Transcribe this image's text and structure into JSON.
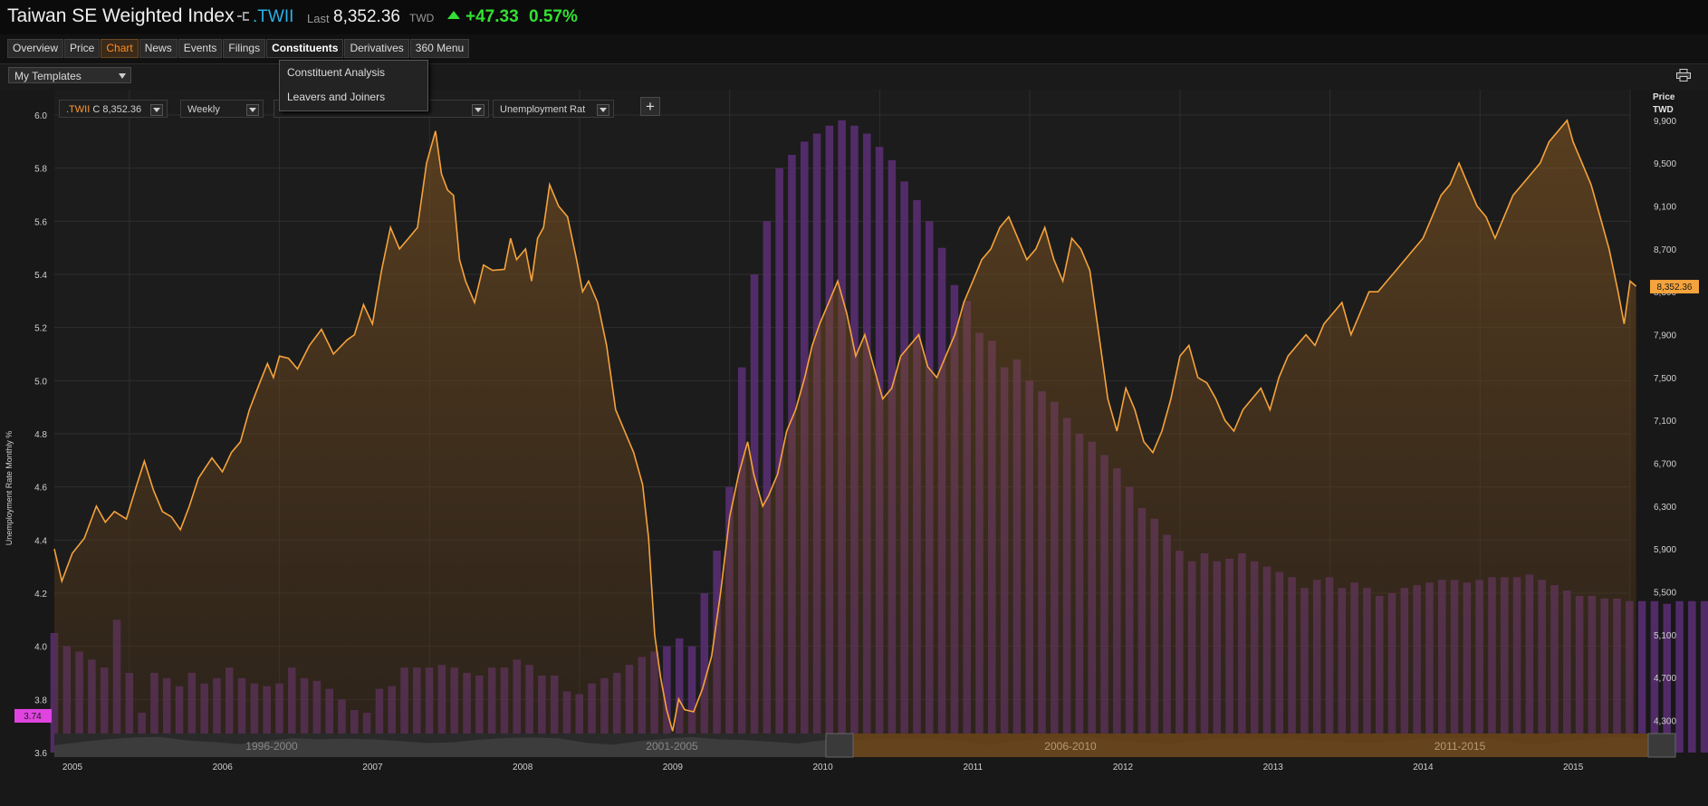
{
  "header": {
    "title": "Taiwan SE Weighted Index",
    "ric": ".TWII",
    "last_label": "Last",
    "last_value": "8,352.36",
    "currency": "TWD",
    "change": "+47.33",
    "change_pct": "0.57%",
    "colors": {
      "up": "#33e033",
      "ric": "#2ab0e8"
    }
  },
  "tabs": [
    {
      "label": "Overview"
    },
    {
      "label": "Price"
    },
    {
      "label": "Chart",
      "state": "active"
    },
    {
      "label": "News"
    },
    {
      "label": "Events"
    },
    {
      "label": "Filings"
    },
    {
      "label": "Constituents",
      "state": "open"
    },
    {
      "label": "Derivatives"
    },
    {
      "label": "360 Menu"
    }
  ],
  "constituents_menu": [
    "Constituent Analysis",
    "Leavers and Joiners"
  ],
  "toolbar": {
    "templates_label": "My Templates",
    "print_icon": "print-icon"
  },
  "controls": {
    "instrument_ric": ".TWII",
    "instrument_value": "C 8,352.36",
    "interval": "Weekly",
    "indicator": "Unemployment Rat",
    "add_label": "+"
  },
  "chart_data": {
    "type": "bar+area-line",
    "left_axis": {
      "label": "Unemployment Rate Monthly %",
      "ticks": [
        "6.0",
        "5.8",
        "5.6",
        "5.4",
        "5.2",
        "5.0",
        "4.8",
        "4.6",
        "4.4",
        "4.2",
        "4.0",
        "3.8",
        "3.6"
      ],
      "range": [
        3.6,
        6.0
      ]
    },
    "right_axis": {
      "label": "Price",
      "unit": "TWD",
      "ticks": [
        "9,900",
        "9,500",
        "9,100",
        "8,700",
        "8,300",
        "7,900",
        "7,500",
        "7,100",
        "6,700",
        "6,300",
        "5,900",
        "5,500",
        "5,100",
        "4,700",
        "4,300"
      ],
      "range": [
        4000,
        9950
      ]
    },
    "x_axis": {
      "labels": [
        "2005",
        "2006",
        "2007",
        "2008",
        "2009",
        "2010",
        "2011",
        "2012",
        "2013",
        "2014",
        "2015"
      ],
      "range": [
        2005.0,
        2015.5
      ]
    },
    "last_price_marker": "8,352.36",
    "last_rate_marker": "3.74",
    "price_series": {
      "name": ".TWII",
      "color": "#f5a33c",
      "points": [
        [
          2005.0,
          5900
        ],
        [
          2005.05,
          5600
        ],
        [
          2005.12,
          5860
        ],
        [
          2005.2,
          6000
        ],
        [
          2005.28,
          6300
        ],
        [
          2005.34,
          6150
        ],
        [
          2005.4,
          6250
        ],
        [
          2005.48,
          6180
        ],
        [
          2005.55,
          6500
        ],
        [
          2005.6,
          6720
        ],
        [
          2005.66,
          6450
        ],
        [
          2005.72,
          6250
        ],
        [
          2005.78,
          6200
        ],
        [
          2005.84,
          6080
        ],
        [
          2005.9,
          6300
        ],
        [
          2005.96,
          6560
        ],
        [
          2006.05,
          6750
        ],
        [
          2006.12,
          6620
        ],
        [
          2006.18,
          6800
        ],
        [
          2006.24,
          6900
        ],
        [
          2006.3,
          7200
        ],
        [
          2006.36,
          7420
        ],
        [
          2006.42,
          7630
        ],
        [
          2006.46,
          7500
        ],
        [
          2006.5,
          7700
        ],
        [
          2006.56,
          7680
        ],
        [
          2006.62,
          7580
        ],
        [
          2006.7,
          7800
        ],
        [
          2006.78,
          7950
        ],
        [
          2006.86,
          7720
        ],
        [
          2006.95,
          7850
        ],
        [
          2007.0,
          7900
        ],
        [
          2007.06,
          8180
        ],
        [
          2007.12,
          8000
        ],
        [
          2007.18,
          8500
        ],
        [
          2007.24,
          8900
        ],
        [
          2007.3,
          8700
        ],
        [
          2007.36,
          8800
        ],
        [
          2007.42,
          8900
        ],
        [
          2007.48,
          9500
        ],
        [
          2007.54,
          9800
        ],
        [
          2007.58,
          9400
        ],
        [
          2007.62,
          9250
        ],
        [
          2007.66,
          9200
        ],
        [
          2007.7,
          8600
        ],
        [
          2007.74,
          8400
        ],
        [
          2007.8,
          8200
        ],
        [
          2007.86,
          8550
        ],
        [
          2007.92,
          8500
        ],
        [
          2008.0,
          8510
        ],
        [
          2008.04,
          8800
        ],
        [
          2008.08,
          8600
        ],
        [
          2008.14,
          8700
        ],
        [
          2008.18,
          8400
        ],
        [
          2008.22,
          8800
        ],
        [
          2008.26,
          8900
        ],
        [
          2008.3,
          9300
        ],
        [
          2008.36,
          9100
        ],
        [
          2008.42,
          9000
        ],
        [
          2008.48,
          8600
        ],
        [
          2008.52,
          8300
        ],
        [
          2008.56,
          8400
        ],
        [
          2008.62,
          8200
        ],
        [
          2008.68,
          7800
        ],
        [
          2008.74,
          7200
        ],
        [
          2008.8,
          7000
        ],
        [
          2008.86,
          6800
        ],
        [
          2008.92,
          6500
        ],
        [
          2008.96,
          6000
        ],
        [
          2009.0,
          5100
        ],
        [
          2009.04,
          4700
        ],
        [
          2009.08,
          4400
        ],
        [
          2009.12,
          4200
        ],
        [
          2009.16,
          4500
        ],
        [
          2009.2,
          4400
        ],
        [
          2009.26,
          4380
        ],
        [
          2009.32,
          4600
        ],
        [
          2009.38,
          4900
        ],
        [
          2009.44,
          5500
        ],
        [
          2009.5,
          6200
        ],
        [
          2009.56,
          6600
        ],
        [
          2009.62,
          6900
        ],
        [
          2009.66,
          6600
        ],
        [
          2009.72,
          6300
        ],
        [
          2009.76,
          6400
        ],
        [
          2009.82,
          6600
        ],
        [
          2009.88,
          7000
        ],
        [
          2009.94,
          7200
        ],
        [
          2010.0,
          7500
        ],
        [
          2010.05,
          7800
        ],
        [
          2010.1,
          8000
        ],
        [
          2010.16,
          8200
        ],
        [
          2010.22,
          8400
        ],
        [
          2010.28,
          8100
        ],
        [
          2010.34,
          7700
        ],
        [
          2010.4,
          7900
        ],
        [
          2010.46,
          7600
        ],
        [
          2010.52,
          7300
        ],
        [
          2010.58,
          7400
        ],
        [
          2010.64,
          7700
        ],
        [
          2010.7,
          7800
        ],
        [
          2010.76,
          7900
        ],
        [
          2010.82,
          7600
        ],
        [
          2010.88,
          7500
        ],
        [
          2010.94,
          7700
        ],
        [
          2011.0,
          7900
        ],
        [
          2011.06,
          8200
        ],
        [
          2011.12,
          8400
        ],
        [
          2011.18,
          8600
        ],
        [
          2011.24,
          8700
        ],
        [
          2011.3,
          8900
        ],
        [
          2011.36,
          9000
        ],
        [
          2011.42,
          8800
        ],
        [
          2011.48,
          8600
        ],
        [
          2011.54,
          8700
        ],
        [
          2011.6,
          8900
        ],
        [
          2011.66,
          8600
        ],
        [
          2011.72,
          8400
        ],
        [
          2011.78,
          8800
        ],
        [
          2011.84,
          8700
        ],
        [
          2011.9,
          8500
        ],
        [
          2011.96,
          7900
        ],
        [
          2012.02,
          7300
        ],
        [
          2012.08,
          7000
        ],
        [
          2012.14,
          7400
        ],
        [
          2012.2,
          7200
        ],
        [
          2012.26,
          6900
        ],
        [
          2012.32,
          6800
        ],
        [
          2012.38,
          7000
        ],
        [
          2012.44,
          7300
        ],
        [
          2012.5,
          7700
        ],
        [
          2012.56,
          7800
        ],
        [
          2012.62,
          7500
        ],
        [
          2012.68,
          7450
        ],
        [
          2012.74,
          7300
        ],
        [
          2012.8,
          7100
        ],
        [
          2012.86,
          7000
        ],
        [
          2012.92,
          7200
        ],
        [
          2012.98,
          7300
        ],
        [
          2013.04,
          7400
        ],
        [
          2013.1,
          7200
        ],
        [
          2013.16,
          7500
        ],
        [
          2013.22,
          7700
        ],
        [
          2013.28,
          7800
        ],
        [
          2013.34,
          7900
        ],
        [
          2013.4,
          7800
        ],
        [
          2013.46,
          8000
        ],
        [
          2013.52,
          8100
        ],
        [
          2013.58,
          8200
        ],
        [
          2013.64,
          7900
        ],
        [
          2013.7,
          8100
        ],
        [
          2013.76,
          8300
        ],
        [
          2013.82,
          8300
        ],
        [
          2013.88,
          8400
        ],
        [
          2013.94,
          8500
        ],
        [
          2014.0,
          8600
        ],
        [
          2014.06,
          8700
        ],
        [
          2014.12,
          8800
        ],
        [
          2014.18,
          9000
        ],
        [
          2014.24,
          9200
        ],
        [
          2014.3,
          9300
        ],
        [
          2014.36,
          9500
        ],
        [
          2014.42,
          9300
        ],
        [
          2014.48,
          9100
        ],
        [
          2014.54,
          9000
        ],
        [
          2014.6,
          8800
        ],
        [
          2014.66,
          9000
        ],
        [
          2014.72,
          9200
        ],
        [
          2014.78,
          9300
        ],
        [
          2014.84,
          9400
        ],
        [
          2014.9,
          9500
        ],
        [
          2014.96,
          9700
        ],
        [
          2015.02,
          9800
        ],
        [
          2015.08,
          9900
        ],
        [
          2015.12,
          9700
        ],
        [
          2015.18,
          9500
        ],
        [
          2015.24,
          9300
        ],
        [
          2015.3,
          9000
        ],
        [
          2015.36,
          8700
        ],
        [
          2015.42,
          8300
        ],
        [
          2015.46,
          8000
        ],
        [
          2015.5,
          8400
        ],
        [
          2015.54,
          8352
        ]
      ]
    },
    "rate_series": {
      "name": "Unemployment Rate Monthly %",
      "color": "#5c2f76",
      "x_start": 2005.0,
      "x_step": 0.0833,
      "values": [
        4.05,
        4.0,
        3.98,
        3.95,
        3.92,
        4.1,
        3.9,
        3.75,
        3.9,
        3.88,
        3.85,
        3.9,
        3.86,
        3.88,
        3.92,
        3.88,
        3.86,
        3.85,
        3.86,
        3.92,
        3.88,
        3.87,
        3.84,
        3.8,
        3.76,
        3.75,
        3.84,
        3.85,
        3.92,
        3.92,
        3.92,
        3.93,
        3.92,
        3.9,
        3.89,
        3.92,
        3.92,
        3.95,
        3.93,
        3.89,
        3.89,
        3.83,
        3.82,
        3.86,
        3.88,
        3.9,
        3.93,
        3.96,
        3.98,
        4.0,
        4.03,
        4.0,
        4.2,
        4.36,
        4.6,
        5.05,
        5.4,
        5.6,
        5.8,
        5.85,
        5.9,
        5.93,
        5.96,
        5.98,
        5.96,
        5.93,
        5.88,
        5.83,
        5.75,
        5.68,
        5.6,
        5.5,
        5.36,
        5.3,
        5.18,
        5.15,
        5.05,
        5.08,
        5.0,
        4.96,
        4.92,
        4.86,
        4.8,
        4.77,
        4.72,
        4.67,
        4.6,
        4.52,
        4.48,
        4.42,
        4.36,
        4.32,
        4.35,
        4.32,
        4.33,
        4.35,
        4.32,
        4.3,
        4.28,
        4.26,
        4.22,
        4.25,
        4.26,
        4.22,
        4.24,
        4.22,
        4.19,
        4.2,
        4.22,
        4.23,
        4.24,
        4.25,
        4.25,
        4.24,
        4.25,
        4.26,
        4.26,
        4.26,
        4.27,
        4.25,
        4.23,
        4.21,
        4.19,
        4.19,
        4.18,
        4.18,
        4.17,
        4.17,
        4.17,
        4.16,
        4.17,
        4.17,
        4.17,
        4.17,
        4.15,
        4.13,
        4.08,
        4.06,
        4.03,
        4.04,
        4.02,
        4.0,
        3.98,
        3.97,
        3.95,
        3.92,
        3.9,
        3.88,
        3.86,
        3.85,
        3.83,
        3.8,
        3.78,
        3.76,
        3.75,
        3.76,
        3.76,
        3.76,
        3.74,
        3.75,
        3.73,
        3.74
      ]
    }
  },
  "navigator": {
    "ranges": [
      "1996-2000",
      "2001-2005",
      "2006-2010",
      "2011-2015"
    ],
    "selection": "2006-2010 to 2011-2015"
  }
}
